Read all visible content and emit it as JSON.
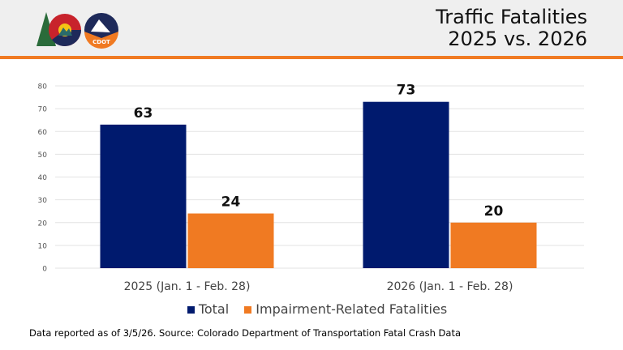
{
  "header": {
    "title_line1": "Traffic Fatalities",
    "title_line2": "2025 vs. 2026",
    "logo_text": "CDOT"
  },
  "colors": {
    "total": "#001a6e",
    "impairment": "#f07a22",
    "accent": "#f07a22"
  },
  "chart_data": {
    "type": "bar",
    "categories": [
      "2025 (Jan. 1 - Feb. 28)",
      "2026 (Jan. 1 - Feb. 28)"
    ],
    "series": [
      {
        "name": "Total",
        "values": [
          63,
          73
        ]
      },
      {
        "name": "Impairment-Related Fatalities",
        "values": [
          24,
          20
        ]
      }
    ],
    "ylim": [
      0,
      80
    ],
    "yticks": [
      0,
      10,
      20,
      30,
      40,
      50,
      60,
      70,
      80
    ],
    "grid": true,
    "legend": "bottom"
  },
  "footer": "Data reported as of 3/5/26. Source: Colorado Department of Transportation Fatal Crash Data"
}
